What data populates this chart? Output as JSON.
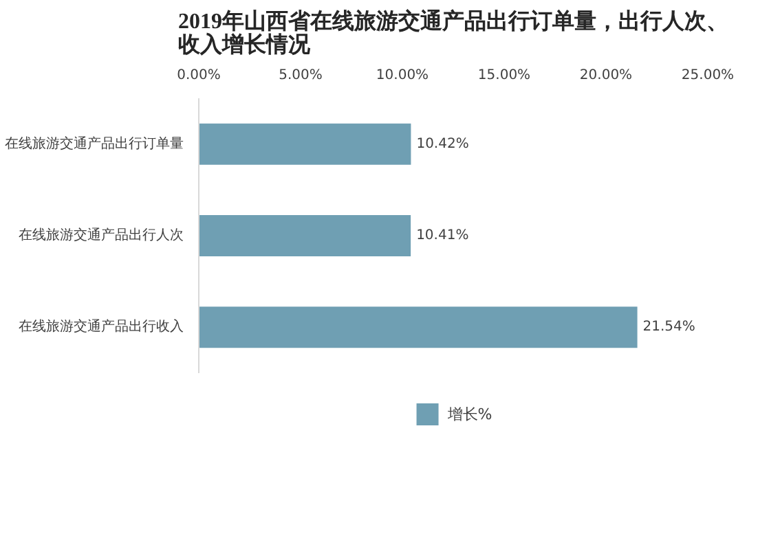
{
  "chart_data": {
    "type": "bar",
    "orientation": "horizontal",
    "title": "2019年山西省在线旅游交通产品出行订单量，出行人次、收入增长情况",
    "categories": [
      "在线旅游交通产品出行订单量",
      "在线旅游交通产品出行人次",
      "在线旅游交通产品出行收入"
    ],
    "series": [
      {
        "name": "增长%",
        "color": "#6f9fb3",
        "values": [
          10.42,
          10.41,
          21.54
        ],
        "value_labels": [
          "10.42%",
          "10.41%",
          "21.54%"
        ]
      }
    ],
    "xlim": [
      0,
      25
    ],
    "xticks": [
      {
        "value": 0,
        "label": "0.00%"
      },
      {
        "value": 5,
        "label": "5.00%"
      },
      {
        "value": 10,
        "label": "10.00%"
      },
      {
        "value": 15,
        "label": "15.00%"
      },
      {
        "value": 20,
        "label": "20.00%"
      },
      {
        "value": 25,
        "label": "25.00%"
      }
    ],
    "grid": false,
    "legend": "bottom"
  }
}
